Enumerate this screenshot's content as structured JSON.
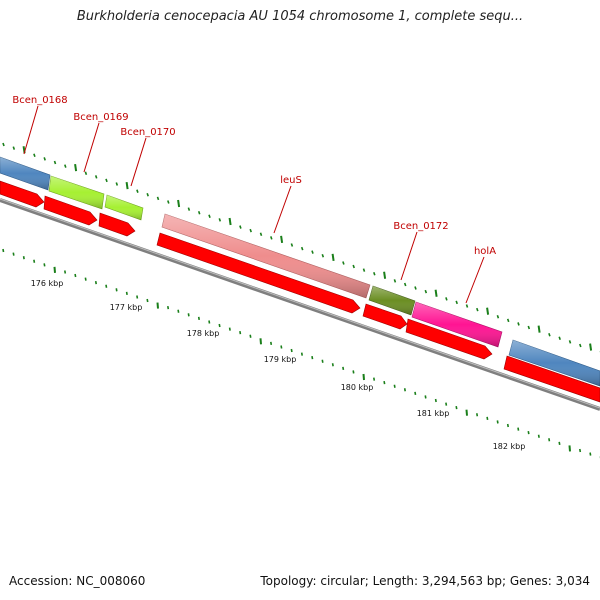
{
  "title": "Burkholderia cenocepacia AU 1054 chromosome 1, complete sequ...",
  "footer": {
    "accession": "Accession: NC_008060",
    "summary": "Topology: circular; Length: 3,294,563 bp; Genes: 3,034"
  },
  "colors": {
    "backbone": "#7f7f7f",
    "cds_arrow": "#ff0000",
    "label": "#c00000",
    "tick": "#1a7f1a"
  },
  "features": [
    {
      "label": "Bcen_0168",
      "color": "#4f86bf"
    },
    {
      "label": "Bcen_0169",
      "color": "#a6f032"
    },
    {
      "label": "Bcen_0170",
      "color": "#a6f032"
    },
    {
      "label": "leuS",
      "color": "#ef8d8d"
    },
    {
      "label": "Bcen_0172",
      "color": "#6b8e23"
    },
    {
      "label": "holA",
      "color": "#ff1493"
    },
    {
      "label": "",
      "color": "#4f86bf"
    }
  ],
  "scale_labels": [
    "176 kbp",
    "177 kbp",
    "178 kbp",
    "179 kbp",
    "180 kbp",
    "181 kbp",
    "182 kbp"
  ]
}
